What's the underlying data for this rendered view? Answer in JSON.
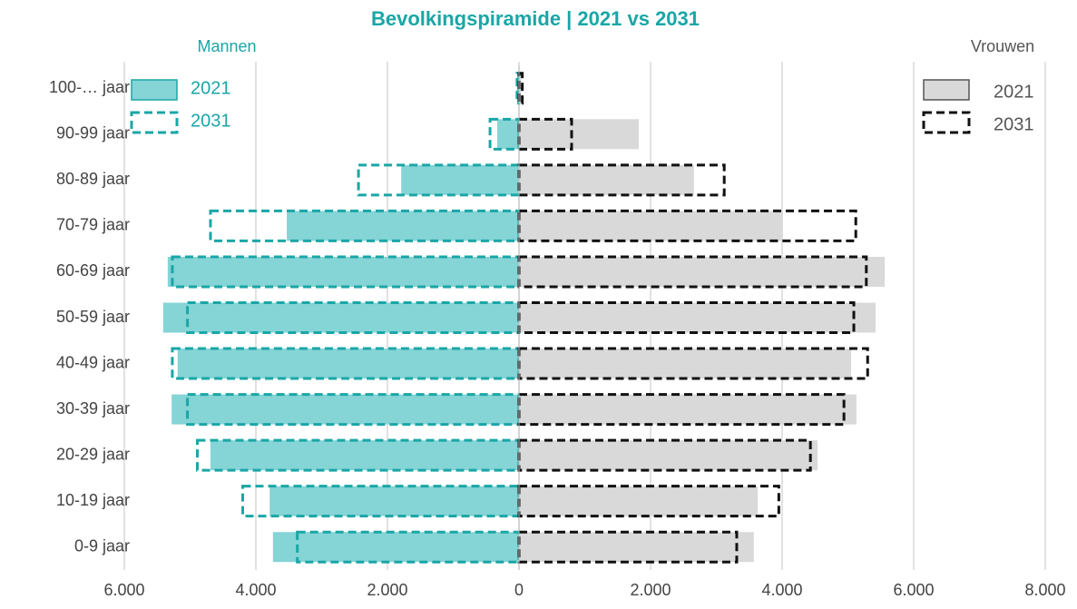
{
  "chart_data": {
    "type": "bar",
    "orientation": "horizontal",
    "title": "Bevolkingspiramide | 2021 vs 2031",
    "categories": [
      "100-… jaar",
      "90-99 jaar",
      "80-89 jaar",
      "70-79 jaar",
      "60-69 jaar",
      "50-59 jaar",
      "40-49 jaar",
      "30-39 jaar",
      "20-29 jaar",
      "10-19 jaar",
      "0-9 jaar"
    ],
    "xlim": [
      -6000,
      8000
    ],
    "xticks": [
      {
        "value": -6000,
        "label": "6.000"
      },
      {
        "value": -4000,
        "label": "4.000"
      },
      {
        "value": -2000,
        "label": "2.000"
      },
      0,
      {
        "value": 2000,
        "label": "2.000"
      },
      {
        "value": 4000,
        "label": "4.000"
      },
      {
        "value": 6000,
        "label": "6.000"
      },
      {
        "value": 8000,
        "label": "8.000"
      }
    ],
    "grid": true,
    "groups": [
      {
        "name": "Mannen",
        "color": "#1aa6a6",
        "series": [
          {
            "name": "2021",
            "color": "#85d4d6",
            "style": "filled",
            "values": [
              -30,
              -330,
              -1790,
              -3530,
              -5340,
              -5410,
              -5190,
              -5280,
              -4690,
              -3790,
              -3740
            ]
          },
          {
            "name": "2031",
            "color": "#1aa6a6",
            "style": "dashed",
            "values": [
              -30,
              -440,
              -2440,
              -4690,
              -5270,
              -5040,
              -5270,
              -5040,
              -4890,
              -4200,
              -3370
            ]
          }
        ]
      },
      {
        "name": "Vrouwen",
        "color": "#555555",
        "series": [
          {
            "name": "2021",
            "color": "#d9d9d9",
            "style": "filled",
            "values": [
              30,
              1820,
              2660,
              4010,
              5560,
              5420,
              5050,
              5130,
              4540,
              3630,
              3570
            ]
          },
          {
            "name": "2031",
            "color": "#111111",
            "style": "dashed",
            "values": [
              50,
              800,
              3120,
              5120,
              5280,
              5090,
              5300,
              4940,
              4430,
              3950,
              3310
            ]
          }
        ]
      }
    ]
  }
}
